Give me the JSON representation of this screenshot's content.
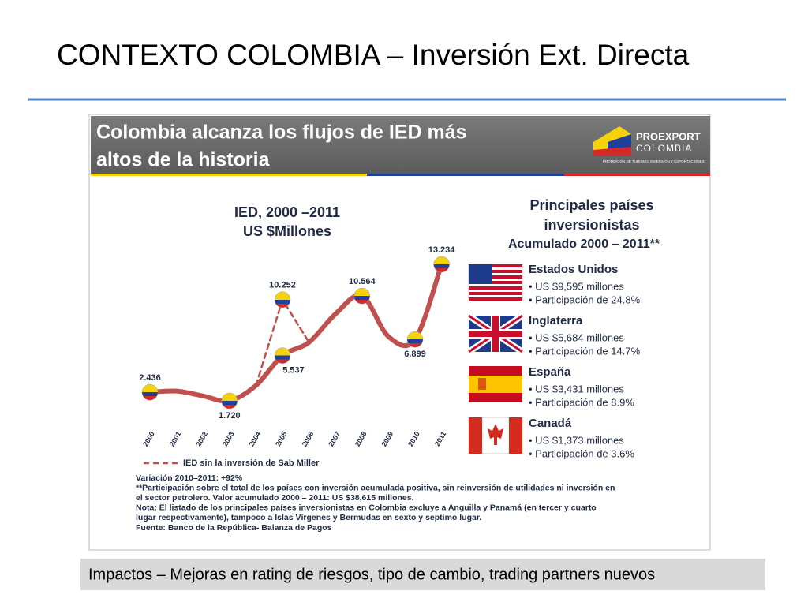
{
  "title": "CONTEXTO COLOMBIA – Inversión Ext. Directa",
  "panel": {
    "headline": [
      "Colombia alcanza los flujos de IED más",
      "altos de la historia"
    ],
    "logo": [
      "PROEXPORT",
      "COLOMBIA"
    ],
    "logo_tagline": "PROMOCIÓN DE TURISMO, INVERSIÓN Y EXPORTACIONES"
  },
  "chart_data": {
    "type": "line",
    "title": [
      "IED, 2000 –2011",
      "US $Millones"
    ],
    "categories": [
      "2000",
      "2001",
      "2002",
      "2003",
      "2004",
      "2005",
      "2006",
      "2007",
      "2008",
      "2009",
      "2010",
      "2011"
    ],
    "series": [
      {
        "name": null,
        "color": "#c0504d",
        "values": [
          2436,
          2542,
          2134,
          1720,
          3016,
          5537,
          6656,
          9049,
          10564,
          7137,
          6899,
          13234
        ],
        "value_labels": [
          "2.436",
          null,
          null,
          "1.720",
          null,
          "5.537",
          null,
          null,
          "10.564",
          null,
          "6.899",
          "13.234"
        ]
      },
      {
        "name": "IED sin la inversión de Sab Miller",
        "color": "#c0504d",
        "dashed": true,
        "values": [
          null,
          null,
          null,
          null,
          3016,
          10252,
          6656,
          null,
          null,
          null,
          null,
          null
        ],
        "value_labels": [
          null,
          null,
          null,
          null,
          null,
          "10.252",
          null,
          null,
          null,
          null,
          null,
          null
        ]
      }
    ]
  },
  "countries": {
    "title": [
      "Principales países",
      "inversionistas",
      "Acumulado 2000 – 2011**"
    ],
    "items": [
      {
        "name": "Estados Unidos",
        "lines": [
          "• US $9,595 millones",
          "• Participación de 24.8%"
        ]
      },
      {
        "name": "Inglaterra",
        "lines": [
          "• US $5,684 millones",
          "• Participación de 14.7%"
        ]
      },
      {
        "name": "España",
        "lines": [
          "• US $3,431 millones",
          "• Participación de 8.9%"
        ]
      },
      {
        "name": "Canadá",
        "lines": [
          "• US $1,373 millones",
          "• Participación de 3.6%"
        ]
      }
    ]
  },
  "notes": [
    "Variación 2010–2011: +92%",
    "**Participación sobre el total de los países con inversión acumulada positiva, sin reinversión de utilidades ni inversión en",
    "el sector petrolero. Valor acumulado 2000 – 2011: US $38,615 millones.",
    "Nota: El listado de los principales países inversionistas en Colombia excluye a Anguilla y Panamá (en tercer y cuarto",
    "lugar respectivamente), tampoco a Islas Vírgenes y Bermudas en sexto y septimo lugar.",
    "Fuente: Banco de la República- Balanza de Pagos"
  ],
  "footer": "Impactos – Mejoras en rating de riesgos, tipo de cambio, trading partners nuevos"
}
